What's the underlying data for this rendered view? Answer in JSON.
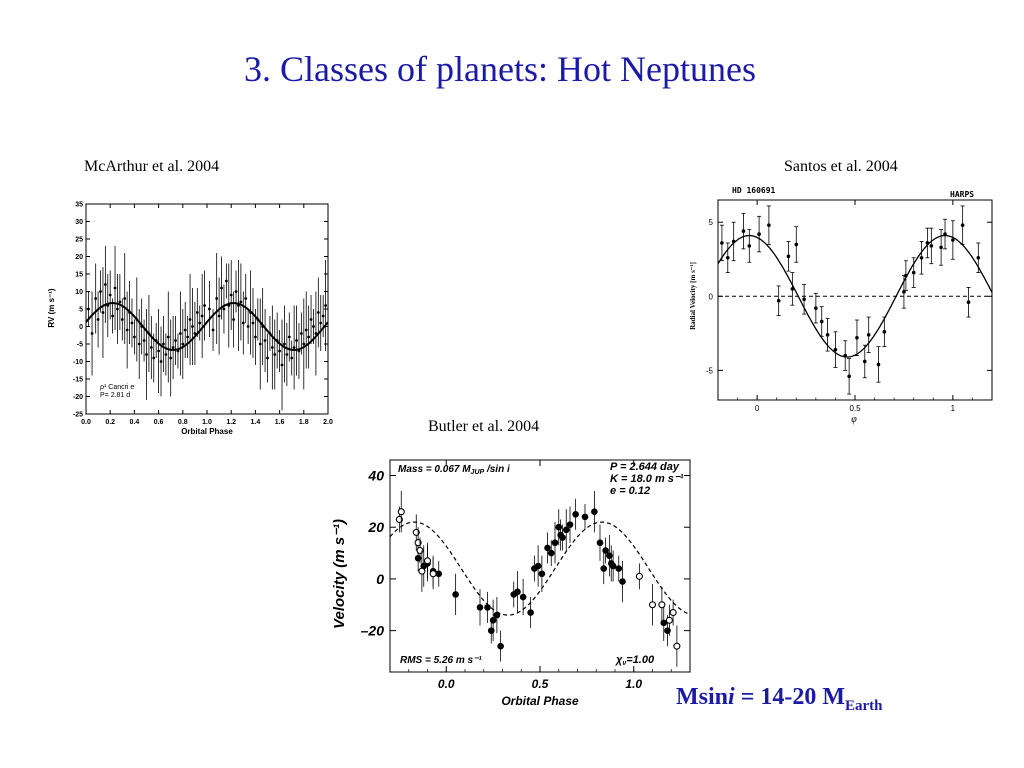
{
  "slide": {
    "title": "3. Classes of planets: Hot Neptunes"
  },
  "captions": {
    "mcarthur": "McArthur et al. 2004",
    "santos": "Santos et al. 2004",
    "butler": "Butler et al. 2004"
  },
  "result": {
    "prefix": "Msin",
    "italic": "i",
    "middle": " = 14-20 M",
    "sub": "Earth"
  },
  "colors": {
    "title": "#1a1aa6",
    "ink": "#000000"
  },
  "chart_data": [
    {
      "id": "mcarthur",
      "type": "scatter",
      "xlabel": "Orbital Phase",
      "ylabel": "RV (m s⁻¹)",
      "xlim": [
        0.0,
        2.0
      ],
      "ylim": [
        -25,
        35
      ],
      "x_ticks": [
        "0.0",
        "0.2",
        "0.4",
        "0.6",
        "0.8",
        "1.0",
        "1.2",
        "1.4",
        "1.6",
        "1.8",
        "2.0"
      ],
      "y_ticks": [
        "35",
        "30",
        "25",
        "20",
        "15",
        "10",
        "5",
        "0",
        "-5",
        "-10",
        "-15",
        "-20",
        "-25"
      ],
      "annotation_lines": [
        "ρ¹ Cancri e",
        "P= 2.81 d"
      ],
      "model": {
        "shape": "sine",
        "amplitude": 6.7,
        "offset": 0,
        "peak_phase": 0.22,
        "style": "solid"
      },
      "points": [
        [
          0.02,
          5
        ],
        [
          0.05,
          -2
        ],
        [
          0.08,
          8
        ],
        [
          0.1,
          2
        ],
        [
          0.12,
          10
        ],
        [
          0.14,
          4
        ],
        [
          0.16,
          12
        ],
        [
          0.18,
          6
        ],
        [
          0.2,
          9
        ],
        [
          0.22,
          3
        ],
        [
          0.24,
          11
        ],
        [
          0.26,
          5
        ],
        [
          0.28,
          7
        ],
        [
          0.3,
          2
        ],
        [
          0.32,
          8
        ],
        [
          0.34,
          -1
        ],
        [
          0.36,
          4
        ],
        [
          0.38,
          1
        ],
        [
          0.4,
          -3
        ],
        [
          0.42,
          2
        ],
        [
          0.44,
          -5
        ],
        [
          0.46,
          0
        ],
        [
          0.48,
          -4
        ],
        [
          0.5,
          -8
        ],
        [
          0.52,
          -2
        ],
        [
          0.54,
          -6
        ],
        [
          0.56,
          -9
        ],
        [
          0.58,
          -4
        ],
        [
          0.6,
          -7
        ],
        [
          0.62,
          -10
        ],
        [
          0.64,
          -5
        ],
        [
          0.66,
          -8
        ],
        [
          0.68,
          -3
        ],
        [
          0.7,
          -9
        ],
        [
          0.72,
          -6
        ],
        [
          0.74,
          -4
        ],
        [
          0.76,
          -7
        ],
        [
          0.78,
          -2
        ],
        [
          0.8,
          -5
        ],
        [
          0.82,
          -1
        ],
        [
          0.84,
          -3
        ],
        [
          0.86,
          2
        ],
        [
          0.88,
          0
        ],
        [
          0.9,
          -2
        ],
        [
          0.92,
          4
        ],
        [
          0.94,
          1
        ],
        [
          0.96,
          3
        ],
        [
          0.98,
          6
        ],
        [
          1.02,
          5
        ],
        [
          1.05,
          -1
        ],
        [
          1.08,
          8
        ],
        [
          1.1,
          3
        ],
        [
          1.12,
          11
        ],
        [
          1.14,
          5
        ],
        [
          1.16,
          13
        ],
        [
          1.18,
          6
        ],
        [
          1.2,
          9
        ],
        [
          1.22,
          2
        ],
        [
          1.24,
          10
        ],
        [
          1.26,
          6
        ],
        [
          1.28,
          7
        ],
        [
          1.3,
          1
        ],
        [
          1.32,
          8
        ],
        [
          1.34,
          0
        ],
        [
          1.36,
          4
        ],
        [
          1.38,
          1
        ],
        [
          1.4,
          -3
        ],
        [
          1.42,
          2
        ],
        [
          1.44,
          -5
        ],
        [
          1.46,
          0
        ],
        [
          1.48,
          -4
        ],
        [
          1.5,
          -9
        ],
        [
          1.52,
          -2
        ],
        [
          1.54,
          -6
        ],
        [
          1.56,
          -8
        ],
        [
          1.58,
          -4
        ],
        [
          1.6,
          -7
        ],
        [
          1.62,
          -11
        ],
        [
          1.64,
          -5
        ],
        [
          1.66,
          -8
        ],
        [
          1.68,
          -3
        ],
        [
          1.7,
          -9
        ],
        [
          1.72,
          -6
        ],
        [
          1.74,
          -4
        ],
        [
          1.76,
          -7
        ],
        [
          1.78,
          -2
        ],
        [
          1.8,
          -5
        ],
        [
          1.82,
          -1
        ],
        [
          1.84,
          -3
        ],
        [
          1.86,
          2
        ],
        [
          1.88,
          0
        ],
        [
          1.9,
          -2
        ],
        [
          1.92,
          4
        ],
        [
          1.94,
          1
        ],
        [
          1.96,
          3
        ],
        [
          1.98,
          6
        ]
      ]
    },
    {
      "id": "santos",
      "type": "scatter",
      "xlabel": "φ",
      "ylabel": "Radial Velocity [m s⁻¹]",
      "xlim": [
        -0.2,
        1.2
      ],
      "ylim": [
        -7,
        6.5
      ],
      "x_ticks": [
        "0",
        "0.5",
        "1"
      ],
      "x_tick_values": [
        0,
        0.5,
        1
      ],
      "y_ticks": [
        "5",
        "0",
        "-5"
      ],
      "y_tick_values": [
        5,
        0,
        -5
      ],
      "label_left": "HD 160691",
      "label_right": "HARPS",
      "model": {
        "shape": "sine",
        "amplitude": 4.1,
        "offset": 0,
        "peak_phase": -0.04,
        "style": "solid"
      },
      "zero_line": "dashed",
      "points": [
        [
          -0.18,
          3.6,
          1.2
        ],
        [
          -0.15,
          2.6,
          1.0
        ],
        [
          -0.12,
          3.7,
          1.3
        ],
        [
          -0.07,
          4.4,
          1.2
        ],
        [
          -0.04,
          3.4,
          1.1
        ],
        [
          0.01,
          4.2,
          1.2
        ],
        [
          0.06,
          4.8,
          1.3
        ],
        [
          0.11,
          -0.3,
          1.0
        ],
        [
          0.16,
          2.7,
          1.0
        ],
        [
          0.18,
          0.5,
          1.1
        ],
        [
          0.2,
          3.5,
          1.2
        ],
        [
          0.24,
          -0.2,
          1.0
        ],
        [
          0.3,
          -0.8,
          1.0
        ],
        [
          0.33,
          -1.7,
          1.0
        ],
        [
          0.36,
          -2.6,
          1.1
        ],
        [
          0.4,
          -3.6,
          1.2
        ],
        [
          0.45,
          -4.0,
          1.0
        ],
        [
          0.47,
          -5.4,
          1.2
        ],
        [
          0.51,
          -2.8,
          1.2
        ],
        [
          0.55,
          -4.4,
          1.1
        ],
        [
          0.57,
          -2.6,
          1.2
        ],
        [
          0.62,
          -4.6,
          1.2
        ],
        [
          0.65,
          -2.4,
          1.0
        ],
        [
          0.75,
          0.3,
          1.1
        ],
        [
          0.76,
          1.4,
          1.0
        ],
        [
          0.8,
          1.6,
          1.0
        ],
        [
          0.84,
          2.6,
          1.1
        ],
        [
          0.87,
          3.6,
          1.0
        ],
        [
          0.89,
          3.4,
          1.2
        ],
        [
          0.94,
          3.3,
          1.2
        ],
        [
          0.96,
          4.2,
          1.0
        ],
        [
          1.0,
          3.8,
          1.3
        ],
        [
          1.05,
          4.8,
          1.3
        ],
        [
          1.08,
          -0.4,
          1.0
        ],
        [
          1.13,
          2.6,
          1.0
        ]
      ]
    },
    {
      "id": "butler",
      "type": "scatter",
      "xlabel": "Orbital Phase",
      "ylabel": "Velocity  (m s⁻¹)",
      "xlim": [
        -0.3,
        1.3
      ],
      "ylim": [
        -36,
        46
      ],
      "x_ticks": [
        "0.0",
        "0.5",
        "1.0"
      ],
      "x_tick_values": [
        0,
        0.5,
        1
      ],
      "y_ticks": [
        "40",
        "20",
        "0",
        "–20"
      ],
      "y_tick_values": [
        40,
        20,
        0,
        -20
      ],
      "annotations": {
        "mass": "Mass = 0.067 M",
        "mass_sub": "JUP",
        "mass_tail": " /sin i",
        "period": "P = 2.644 day",
        "amplitude": "K = 18.0 m s⁻¹",
        "ecc": "e = 0.12",
        "rms": "RMS = 5.26 m s⁻¹",
        "chi_symbol": "χ",
        "chi_sub": "ν",
        "chi_value": "=1.00"
      },
      "model": {
        "shape": "sine",
        "amplitude": 18.0,
        "offset": 4,
        "peak_phase": 0.83,
        "style": "dashed"
      },
      "points_filled": [
        [
          -0.15,
          8
        ],
        [
          -0.12,
          5
        ],
        [
          -0.1,
          6
        ],
        [
          -0.07,
          3
        ],
        [
          -0.04,
          2
        ],
        [
          0.05,
          -6
        ],
        [
          0.18,
          -11
        ],
        [
          0.22,
          -11
        ],
        [
          0.24,
          -20
        ],
        [
          0.25,
          -16
        ],
        [
          0.27,
          -14
        ],
        [
          0.29,
          -26
        ],
        [
          0.36,
          -6
        ],
        [
          0.38,
          -5
        ],
        [
          0.41,
          -7
        ],
        [
          0.45,
          -13
        ],
        [
          0.47,
          4
        ],
        [
          0.49,
          5
        ],
        [
          0.51,
          2
        ],
        [
          0.54,
          12
        ],
        [
          0.56,
          10
        ],
        [
          0.58,
          14
        ],
        [
          0.6,
          20
        ],
        [
          0.61,
          17
        ],
        [
          0.62,
          16
        ],
        [
          0.64,
          19
        ],
        [
          0.66,
          21
        ],
        [
          0.69,
          25
        ],
        [
          0.74,
          24
        ],
        [
          0.79,
          26
        ],
        [
          0.82,
          14
        ],
        [
          0.84,
          4
        ],
        [
          0.85,
          11
        ],
        [
          0.87,
          9
        ],
        [
          0.88,
          6
        ],
        [
          0.89,
          5
        ],
        [
          0.92,
          4
        ],
        [
          0.94,
          -1
        ],
        [
          1.16,
          -17
        ],
        [
          1.18,
          -20
        ]
      ],
      "points_open": [
        [
          -0.25,
          23
        ],
        [
          -0.24,
          26
        ],
        [
          -0.16,
          18
        ],
        [
          -0.15,
          14
        ],
        [
          -0.14,
          11
        ],
        [
          -0.13,
          3
        ],
        [
          -0.1,
          7
        ],
        [
          -0.07,
          2
        ],
        [
          1.03,
          1
        ],
        [
          1.1,
          -10
        ],
        [
          1.15,
          -10
        ],
        [
          1.19,
          -16
        ],
        [
          1.21,
          -13
        ],
        [
          1.23,
          -26
        ]
      ]
    }
  ]
}
